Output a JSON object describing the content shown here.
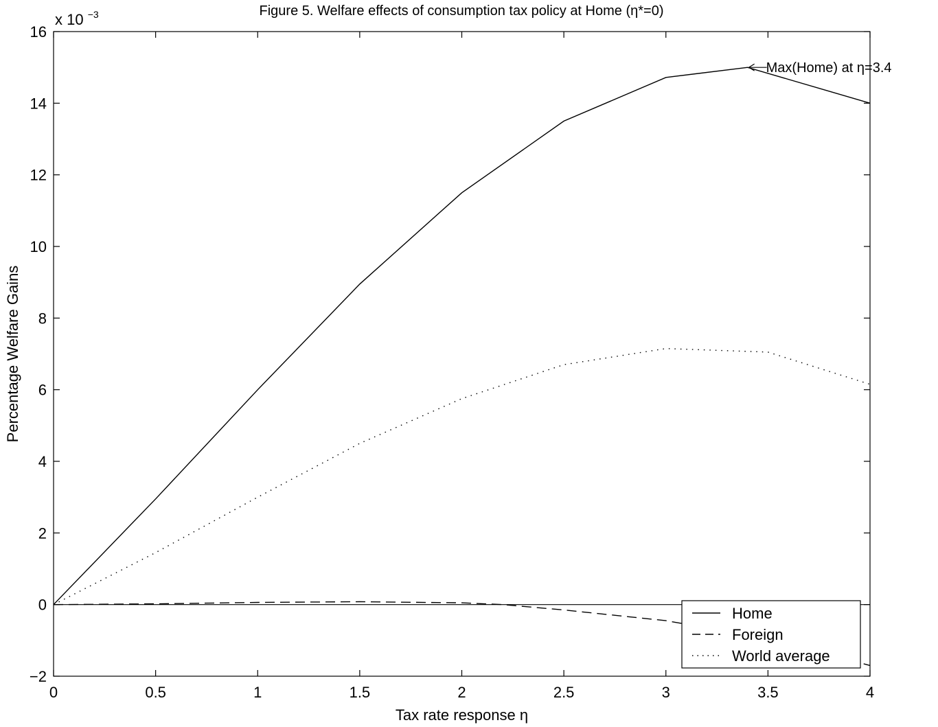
{
  "chart_data": {
    "type": "line",
    "title": "Figure 5. Welfare effects of consumption tax policy at Home (η*=0)",
    "xlabel": "Tax rate response η",
    "ylabel": "Percentage Welfare Gains",
    "y_multiplier_base": "x 10",
    "y_multiplier_exp": "−3",
    "xlim": [
      0,
      4
    ],
    "ylim": [
      -2,
      16
    ],
    "grid": false,
    "legend_position": "bottom-right",
    "x_ticks": [
      0,
      0.5,
      1,
      1.5,
      2,
      2.5,
      3,
      3.5,
      4
    ],
    "x_tick_labels": [
      "0",
      "0.5",
      "1",
      "1.5",
      "2",
      "2.5",
      "3",
      "3.5",
      "4"
    ],
    "y_ticks": [
      -2,
      0,
      2,
      4,
      6,
      8,
      10,
      12,
      14,
      16
    ],
    "y_tick_labels": [
      "−2",
      "0",
      "2",
      "4",
      "6",
      "8",
      "10",
      "12",
      "14",
      "16"
    ],
    "series": [
      {
        "name": "Home",
        "style": "solid",
        "x": [
          0,
          0.5,
          1,
          1.5,
          2,
          2.5,
          3,
          3.4,
          4
        ],
        "y": [
          0,
          2.95,
          6.0,
          8.95,
          11.5,
          13.5,
          14.72,
          15.0,
          14.0
        ]
      },
      {
        "name": "Foreign",
        "style": "dashed",
        "x": [
          0,
          0.5,
          1,
          1.5,
          2,
          2.2,
          2.5,
          3,
          3.5,
          4
        ],
        "y": [
          0,
          0.02,
          0.06,
          0.08,
          0.05,
          0.0,
          -0.15,
          -0.45,
          -0.95,
          -1.7
        ]
      },
      {
        "name": "World average",
        "style": "dotted",
        "x": [
          0,
          0.5,
          1,
          1.5,
          2,
          2.5,
          3,
          3.5,
          4
        ],
        "y": [
          0,
          1.45,
          3.0,
          4.5,
          5.75,
          6.7,
          7.15,
          7.05,
          6.15
        ]
      }
    ],
    "annotations": [
      {
        "text": "Max(Home) at η=3.4",
        "x": 3.4,
        "y": 15.0
      }
    ]
  }
}
